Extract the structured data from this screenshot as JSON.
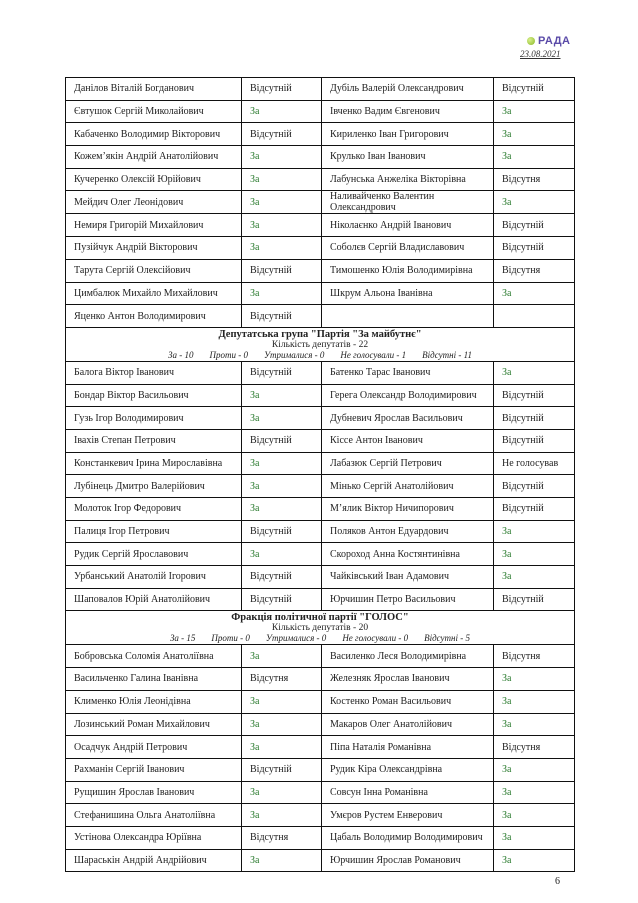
{
  "header": {
    "logo_text": "РАДА",
    "date": "23.08.2021"
  },
  "page_number": "6",
  "colors": {
    "vote_for": "#2e7d32",
    "logo": "#5a4aa8"
  },
  "sections": [
    {
      "rows": [
        [
          "Данілов Віталій Богданович",
          "Відсутній",
          "Дубіль Валерій Олександрович",
          "Відсутній"
        ],
        [
          "Євтушок Сергій Миколайович",
          "За",
          "Івченко Вадим Євгенович",
          "За"
        ],
        [
          "Кабаченко Володимир Вікторович",
          "Відсутній",
          "Кириленко Іван Григорович",
          "За"
        ],
        [
          "Кожем’якін Андрій Анатолійович",
          "За",
          "Крулько Іван Іванович",
          "За"
        ],
        [
          "Кучеренко Олексій Юрійович",
          "За",
          "Лабунська Анжеліка Вікторівна",
          "Відсутня"
        ],
        [
          "Мейдич Олег Леонідович",
          "За",
          "Наливайченко Валентин Олександрович",
          "За"
        ],
        [
          "Немиря Григорій Михайлович",
          "За",
          "Ніколаєнко Андрій Іванович",
          "Відсутній"
        ],
        [
          "Пузійчук Андрій Вікторович",
          "За",
          "Соболєв Сергій Владиславович",
          "Відсутній"
        ],
        [
          "Тарута Сергій Олексійович",
          "Відсутній",
          "Тимошенко Юлія Володимирівна",
          "Відсутня"
        ],
        [
          "Цимбалюк Михайло Михайлович",
          "За",
          "Шкрум Альона Іванівна",
          "За"
        ],
        [
          "Яценко Антон Володимирович",
          "Відсутній",
          "",
          ""
        ]
      ]
    },
    {
      "title": "Депутатська група \"Партія \"За майбутнє\"",
      "count": "Кількість депутатів - 22",
      "stats": [
        "За - 10",
        "Проти - 0",
        "Утрималися - 0",
        "Не голосували - 1",
        "Відсутні - 11"
      ],
      "rows": [
        [
          "Балога Віктор Іванович",
          "Відсутній",
          "Батенко Тарас Іванович",
          "За"
        ],
        [
          "Бондар Віктор Васильович",
          "За",
          "Герега Олександр Володимирович",
          "Відсутній"
        ],
        [
          "Гузь Ігор Володимирович",
          "За",
          "Дубневич Ярослав Васильович",
          "Відсутній"
        ],
        [
          "Івахів Степан Петрович",
          "Відсутній",
          "Кіссе Антон Іванович",
          "Відсутній"
        ],
        [
          "Констанкевич Ірина Мирославівна",
          "За",
          "Лабазюк Сергій Петрович",
          "Не голосував"
        ],
        [
          "Лубінець Дмитро Валерійович",
          "За",
          "Мінько Сергій Анатолійович",
          "Відсутній"
        ],
        [
          "Молоток Ігор Федорович",
          "За",
          "М’ялик Віктор Ничипорович",
          "Відсутній"
        ],
        [
          "Палиця Ігор Петрович",
          "Відсутній",
          "Поляков Антон Едуардович",
          "За"
        ],
        [
          "Рудик Сергій Ярославович",
          "За",
          "Скороход Анна Костянтинівна",
          "За"
        ],
        [
          "Урбанський Анатолій Ігорович",
          "Відсутній",
          "Чайківський Іван Адамович",
          "За"
        ],
        [
          "Шаповалов Юрій Анатолійович",
          "Відсутній",
          "Юрчишин Петро Васильович",
          "Відсутній"
        ]
      ]
    },
    {
      "title": "Фракція політичної партії \"ГОЛОС\"",
      "count": "Кількість депутатів - 20",
      "stats": [
        "За - 15",
        "Проти - 0",
        "Утрималися - 0",
        "Не голосували - 0",
        "Відсутні - 5"
      ],
      "rows": [
        [
          "Бобровська Соломія Анатоліївна",
          "За",
          "Василенко Леся Володимирівна",
          "Відсутня"
        ],
        [
          "Васильченко Галина Іванівна",
          "Відсутня",
          "Железняк Ярослав Іванович",
          "За"
        ],
        [
          "Клименко Юлія Леонідівна",
          "За",
          "Костенко Роман Васильович",
          "За"
        ],
        [
          "Лозинський Роман Михайлович",
          "За",
          "Макаров Олег Анатолійович",
          "За"
        ],
        [
          "Осадчук Андрій Петрович",
          "За",
          "Піпа Наталія Романівна",
          "Відсутня"
        ],
        [
          "Рахманін Сергій Іванович",
          "Відсутній",
          "Рудик Кіра Олександрівна",
          "За"
        ],
        [
          "Рущишин Ярослав Іванович",
          "За",
          "Совсун Інна Романівна",
          "За"
        ],
        [
          "Стефанишина Ольга Анатоліївна",
          "За",
          "Умєров Рустем Енверович",
          "За"
        ],
        [
          "Устінова Олександра Юріївна",
          "Відсутня",
          "Цабаль Володимир Володимирович",
          "За"
        ],
        [
          "Шараськін Андрій Андрійович",
          "За",
          "Юрчишин Ярослав Романович",
          "За"
        ]
      ]
    }
  ]
}
